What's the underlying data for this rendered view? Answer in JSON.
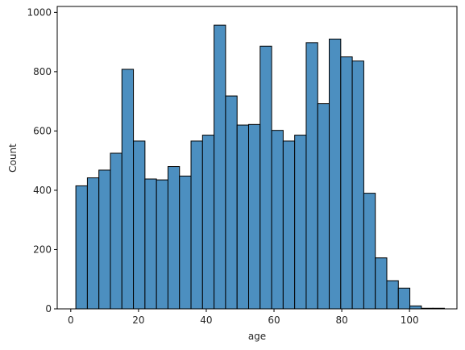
{
  "chart_data": {
    "type": "bar",
    "title": "",
    "xlabel": "age",
    "ylabel": "Count",
    "xlim": [
      -4,
      114
    ],
    "ylim": [
      0,
      1020
    ],
    "grid": false,
    "bar_color": "#4c8fc0",
    "edge_color": "#000000",
    "xticks": [
      0,
      20,
      40,
      60,
      80,
      100
    ],
    "yticks": [
      0,
      200,
      400,
      600,
      800,
      1000
    ],
    "bin_edges": [
      1.5,
      4.9,
      8.3,
      11.7,
      15.1,
      18.5,
      21.9,
      25.3,
      28.7,
      32.1,
      35.5,
      38.9,
      42.3,
      45.7,
      49.1,
      52.5,
      55.9,
      59.3,
      62.7,
      66.1,
      69.5,
      72.9,
      76.3,
      79.7,
      83.1,
      86.5,
      89.9,
      93.3,
      96.7,
      100.1,
      103.5,
      106.9,
      110.3
    ],
    "values": [
      415,
      442,
      468,
      525,
      808,
      566,
      438,
      435,
      480,
      448,
      566,
      586,
      957,
      718,
      620,
      622,
      886,
      602,
      566,
      586,
      898,
      692,
      910,
      850,
      836,
      390,
      172,
      95,
      70,
      10,
      2,
      2
    ]
  }
}
